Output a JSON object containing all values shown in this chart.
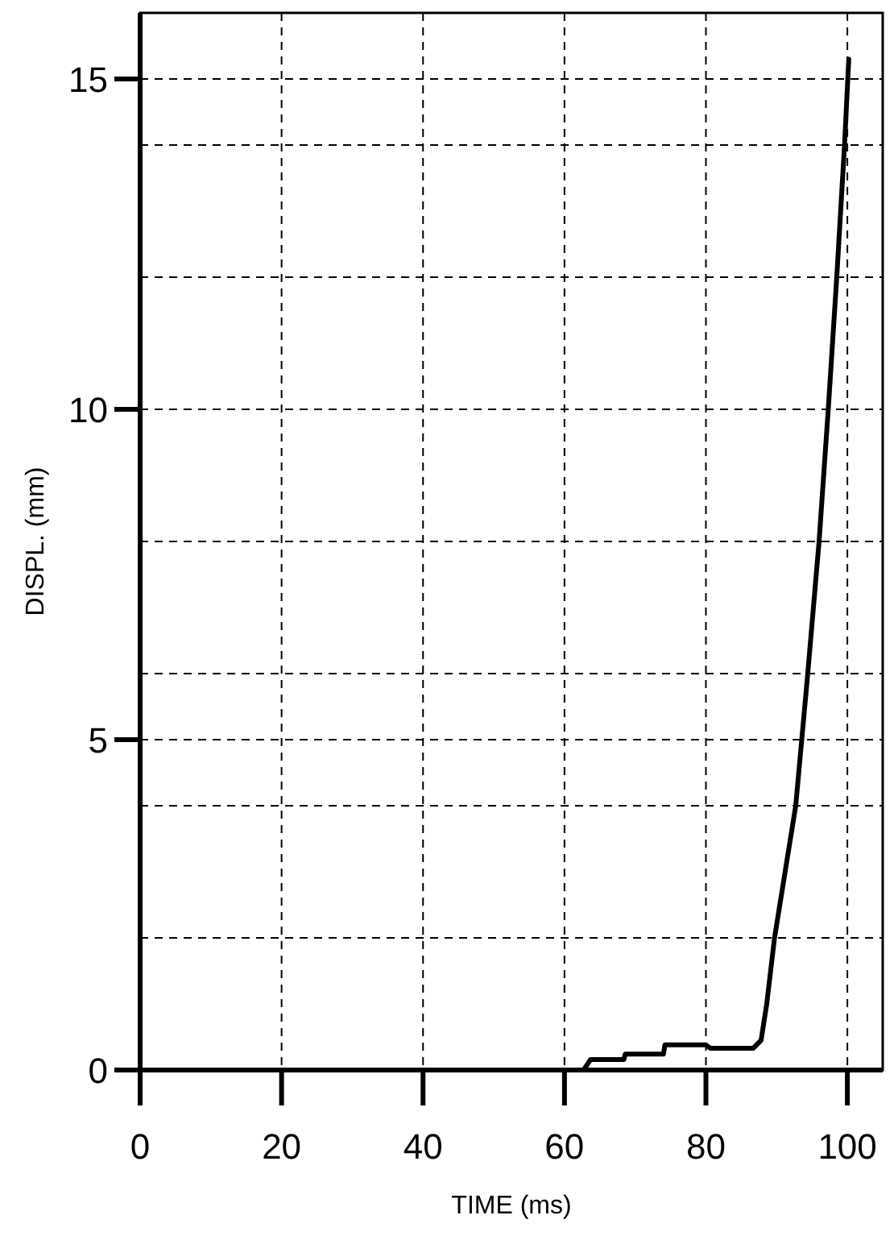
{
  "chart_data": {
    "type": "line",
    "xlabel": "TIME (ms)",
    "ylabel": "DISPL. (mm)",
    "xlim": [
      0,
      105
    ],
    "xticks": [
      0,
      20,
      40,
      60,
      80,
      100
    ],
    "ylim": [
      0,
      16
    ],
    "yticks": [
      0,
      {
        "value": 2,
        "label": null
      },
      {
        "value": 4,
        "label": null
      },
      5,
      {
        "value": 6,
        "label": null
      },
      {
        "value": 8,
        "label": null
      },
      10,
      {
        "value": 12,
        "label": null
      },
      {
        "value": 14,
        "label": null
      },
      15
    ],
    "grid": true,
    "marker": "none",
    "line_style": "solid",
    "series": [
      {
        "color": "#000000",
        "x": [
          0,
          62.7,
          63.7,
          68.4,
          68.6,
          74,
          74.2,
          80,
          80.6,
          86.7,
          87.8,
          88.6,
          89.7,
          91.2,
          92.7,
          94.4,
          96,
          97.3,
          98.5,
          99.6,
          100.2
        ],
        "values": [
          0,
          0,
          0.16,
          0.16,
          0.24,
          0.24,
          0.38,
          0.38,
          0.33,
          0.33,
          0.45,
          1.0,
          2,
          3,
          4,
          6,
          8,
          10,
          12,
          14,
          15.3
        ]
      }
    ]
  }
}
